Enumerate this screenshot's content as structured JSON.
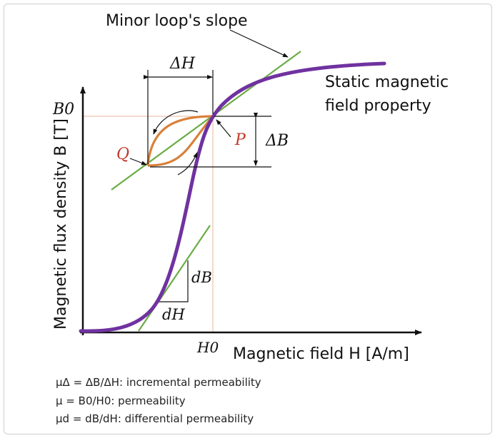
{
  "labels": {
    "minor_loop": "Minor loop's slope",
    "static_line1": "Static magnetic",
    "static_line2": "field property",
    "y_axis": "Magnetic flux density B [T]",
    "x_axis": "Magnetic field H [A/m]",
    "B0": "B0",
    "H0": "H0",
    "delta_H": "ΔH",
    "delta_B": "ΔB",
    "P": "P",
    "Q": "Q",
    "dB": "dB",
    "dH": "dH"
  },
  "legend": [
    "μΔ = ΔB/ΔH: incremental permeability",
    "μ = B0/H0: permeability",
    "μd = dB/dH: differential permeability"
  ],
  "colors": {
    "main_curve": "#7032a0",
    "minor_loop": "#d9813a",
    "slope_lines": "#6aac44",
    "guides": "#e8b49a",
    "pq_labels": "#c0392b"
  }
}
